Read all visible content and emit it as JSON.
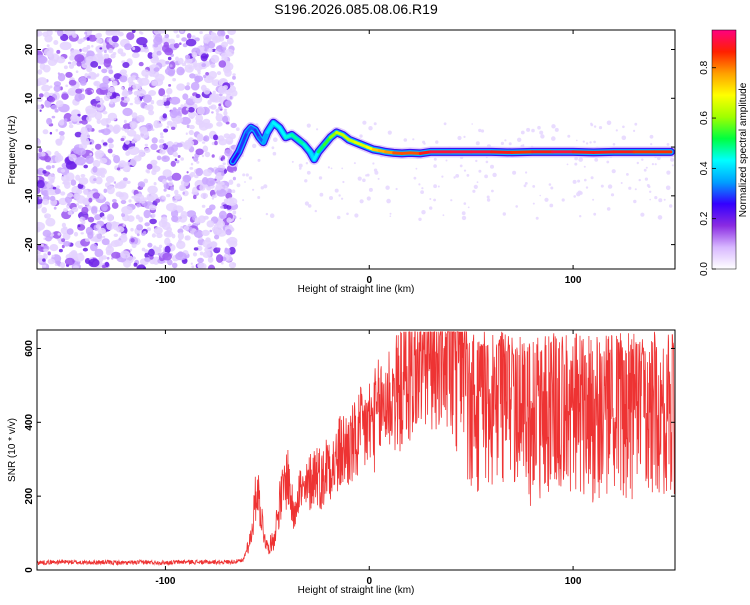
{
  "title": "S196.2026.085.08.06.R19",
  "chart_data": [
    {
      "type": "heatmap",
      "xlabel": "Height of straight line (km)",
      "ylabel": "Frequency (Hz)",
      "xlim": [
        -163,
        150
      ],
      "ylim": [
        -25,
        24
      ],
      "xticks": [
        "-100",
        "0",
        "100"
      ],
      "yticks": [
        "20",
        "10",
        "0",
        "-10",
        "-20"
      ],
      "xtick_values": [
        -100,
        0,
        100
      ],
      "ytick_values": [
        20,
        10,
        0,
        -10,
        -20
      ],
      "colorbar": {
        "label": "Normalized spectral amplitude",
        "range": [
          0,
          0.95
        ],
        "ticks": [
          "0.0",
          "0.2",
          "0.4",
          "0.6",
          "0.8"
        ],
        "tick_values": [
          0.0,
          0.2,
          0.4,
          0.6,
          0.8
        ],
        "colors": [
          "#ffffff",
          "#d8b8ff",
          "#8a2be2",
          "#3300ff",
          "#00a0ff",
          "#00ffff",
          "#00ff40",
          "#a0ff00",
          "#ffff00",
          "#ffa000",
          "#ff2000",
          "#ff0080"
        ]
      },
      "noise_region": {
        "x_range": [
          -163,
          -67
        ],
        "y_range": [
          -25,
          24
        ]
      },
      "trace": {
        "x": [
          -67,
          -64,
          -62,
          -60,
          -58,
          -56,
          -54,
          -52,
          -50,
          -47,
          -44,
          -41,
          -38,
          -35,
          -32,
          -29,
          -27,
          -25,
          -22,
          -19,
          -16,
          -13,
          -10,
          -7,
          -4,
          -1,
          2,
          5,
          8,
          12,
          16,
          20,
          25,
          30,
          40,
          50,
          60,
          70,
          80,
          90,
          100,
          110,
          120,
          130,
          140,
          148
        ],
        "y": [
          -3,
          -1,
          1,
          3,
          4,
          3.5,
          2,
          1,
          3,
          5,
          4,
          2,
          2.5,
          1.5,
          0.5,
          -1,
          -2.5,
          -1,
          0.5,
          2,
          3,
          2.5,
          1.5,
          1,
          0.5,
          0,
          -0.5,
          -0.7,
          -1,
          -1.2,
          -1.3,
          -1.2,
          -1.3,
          -1,
          -1,
          -1,
          -1,
          -1.1,
          -1,
          -1,
          -1,
          -1.1,
          -1,
          -1,
          -1,
          -1
        ],
        "amplitude": [
          0.25,
          0.3,
          0.3,
          0.3,
          0.35,
          0.3,
          0.3,
          0.35,
          0.4,
          0.45,
          0.45,
          0.45,
          0.5,
          0.5,
          0.5,
          0.45,
          0.4,
          0.5,
          0.55,
          0.6,
          0.65,
          0.7,
          0.65,
          0.7,
          0.7,
          0.7,
          0.75,
          0.8,
          0.8,
          0.85,
          0.9,
          0.85,
          0.9,
          0.95,
          0.95,
          0.95,
          0.95,
          0.9,
          0.9,
          0.95,
          0.95,
          0.9,
          0.95,
          0.9,
          0.9,
          0.9
        ]
      }
    },
    {
      "type": "line",
      "xlabel": "Height of straight line (km)",
      "ylabel": "SNR (10 * v/v)",
      "xlim": [
        -163,
        150
      ],
      "ylim": [
        0,
        650
      ],
      "xticks": [
        "-100",
        "0",
        "100"
      ],
      "yticks": [
        "600",
        "400",
        "200",
        "0"
      ],
      "xtick_values": [
        -100,
        0,
        100
      ],
      "ytick_values": [
        600,
        400,
        200,
        0
      ],
      "color": "#ee3333",
      "series": [
        {
          "name": "SNR",
          "x": [
            -163,
            -150,
            -140,
            -130,
            -120,
            -110,
            -100,
            -90,
            -80,
            -70,
            -62,
            -58,
            -55,
            -52,
            -50,
            -47,
            -44,
            -40,
            -37,
            -35,
            -32,
            -29,
            -26,
            -23,
            -20,
            -17,
            -14,
            -10,
            -7,
            -4,
            -1,
            2,
            5,
            8,
            11,
            14,
            17,
            20,
            24,
            28,
            32,
            36,
            40,
            50,
            60,
            70,
            80,
            90,
            100,
            110,
            120,
            130,
            140,
            150
          ],
          "y": [
            20,
            22,
            20,
            21,
            19,
            21,
            20,
            22,
            21,
            22,
            24,
            90,
            230,
            110,
            60,
            80,
            180,
            260,
            140,
            230,
            200,
            240,
            270,
            240,
            300,
            280,
            320,
            330,
            340,
            370,
            390,
            400,
            430,
            460,
            470,
            480,
            500,
            520,
            550,
            570,
            580,
            590,
            560,
            400,
            430,
            400,
            380,
            420,
            410,
            390,
            410,
            400,
            410,
            400
          ]
        }
      ]
    }
  ]
}
